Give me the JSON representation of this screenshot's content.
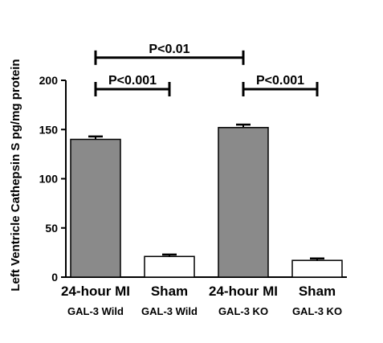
{
  "chart_data": {
    "type": "bar",
    "ylabel": "Left  Ventricle Cathepsin S pg/mg protein",
    "ylim": [
      0,
      200
    ],
    "yticks": [
      0,
      50,
      100,
      150,
      200
    ],
    "categories": [
      "24-hour MI",
      "Sham",
      "24-hour MI",
      "Sham"
    ],
    "subcategories": [
      "GAL-3 Wild",
      "GAL-3 Wild",
      "GAL-3 KO",
      "GAL-3 KO"
    ],
    "values": [
      140,
      21,
      152,
      17
    ],
    "errors": [
      3,
      2,
      3,
      2
    ],
    "bar_colors": [
      "#8a8a8a",
      "#ffffff",
      "#8a8a8a",
      "#ffffff"
    ],
    "significance": [
      {
        "label": "P<0.01",
        "from": 0,
        "to": 2,
        "y": 232
      },
      {
        "label": "P<0.001",
        "from": 0,
        "to": 1,
        "y": 200
      },
      {
        "label": "P<0.001",
        "from": 2,
        "to": 3,
        "y": 200
      }
    ]
  }
}
